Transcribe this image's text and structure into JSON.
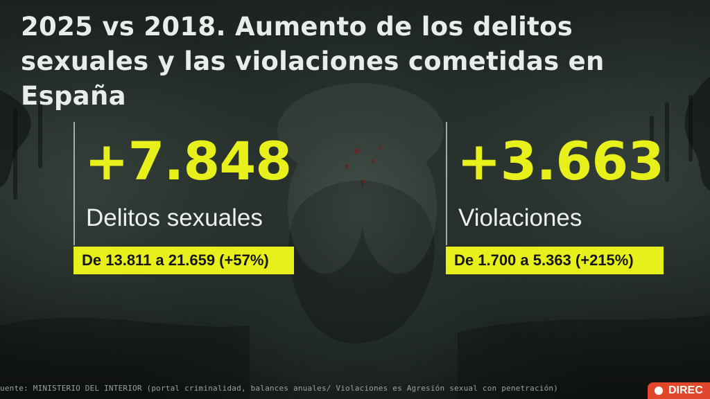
{
  "title": "2025 vs 2018. Aumento de los delitos sexuales y las violaciones cometidas en España",
  "stats": [
    {
      "value": "+7.848",
      "label": "Delitos sexuales",
      "detail": "De 13.811 a 21.659 (+57%)"
    },
    {
      "value": "+3.663",
      "label": "Violaciones",
      "detail": "De 1.700 a 5.363 (+215%)"
    }
  ],
  "source": "uente: MINISTERIO DEL INTERIOR (portal criminalidad, balances anuales/ Violaciones es Agresión sexual con penetración)",
  "live_badge": {
    "icon": "live-dot-icon",
    "label": "DIREC"
  },
  "colors": {
    "accent": "#e8f01c",
    "title_text": "#e9eceb",
    "live_red": "#e0472b",
    "background": "#1b211e"
  }
}
